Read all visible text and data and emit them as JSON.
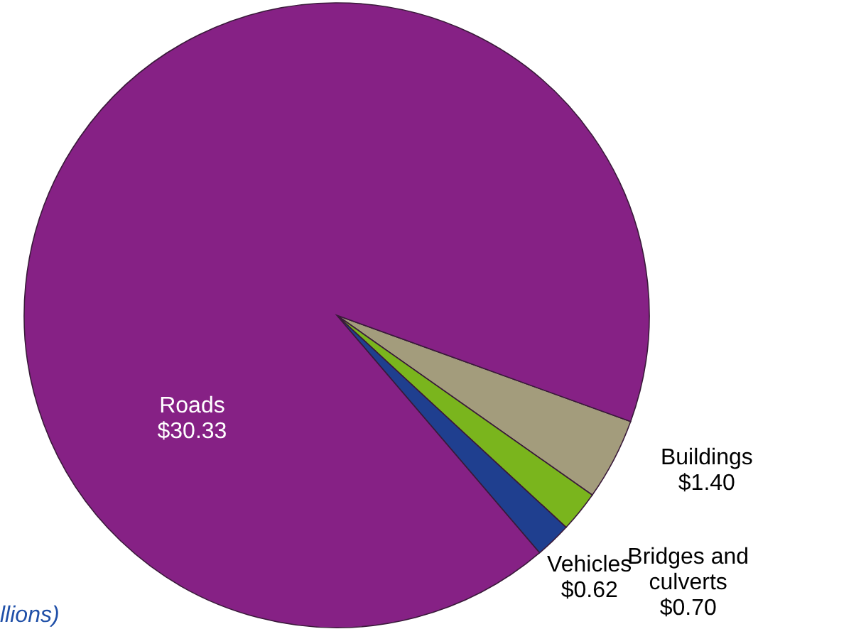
{
  "chart_data": {
    "type": "pie",
    "categories": [
      "Buildings",
      "Bridges and\nculverts",
      "Vehicles",
      "Roads"
    ],
    "values": [
      1.4,
      0.7,
      0.62,
      30.33
    ],
    "value_labels": [
      "$1.40",
      "$0.70",
      "$0.62",
      "$30.33"
    ],
    "colors": [
      "#a39c7c",
      "#7ab51d",
      "#1f3f8f",
      "#862185"
    ],
    "annotations": [
      "llions)"
    ]
  }
}
